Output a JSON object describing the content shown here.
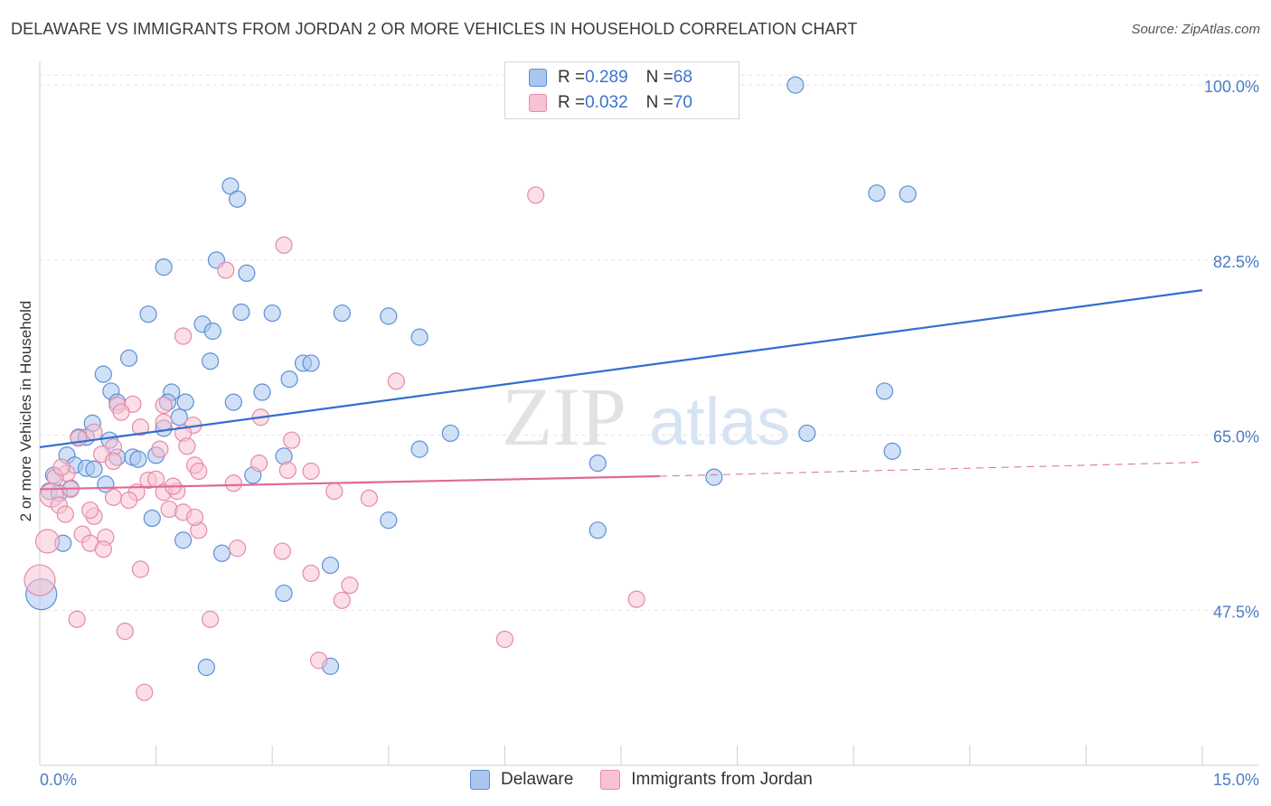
{
  "title": "DELAWARE VS IMMIGRANTS FROM JORDAN 2 OR MORE VEHICLES IN HOUSEHOLD CORRELATION CHART",
  "source": "Source: ZipAtlas.com",
  "watermark": {
    "zip": "ZIP",
    "atlas": "atlas"
  },
  "colors": {
    "blue_fill": "#a9c6ef",
    "blue_stroke": "#5d8fd6",
    "blue_line": "#2f6fcf",
    "pink_fill": "#f7c3d2",
    "pink_stroke": "#e58aa8",
    "pink_line": "#e06a93",
    "tick_text": "#4a7cc7",
    "grid": "#e4e4e4"
  },
  "legend": {
    "rows": [
      {
        "r_label": "R = ",
        "r_value": "0.289",
        "n_label": "N = ",
        "n_value": "68"
      },
      {
        "r_label": "R = ",
        "r_value": "0.032",
        "n_label": "N = ",
        "n_value": "70"
      }
    ]
  },
  "bottom_legend": {
    "series1": "Delaware",
    "series2": "Immigrants from Jordan"
  },
  "chart_data": {
    "type": "scatter",
    "title": "DELAWARE VS IMMIGRANTS FROM JORDAN 2 OR MORE VEHICLES IN HOUSEHOLD CORRELATION CHART",
    "xlabel": "",
    "ylabel": "2 or more Vehicles in Household",
    "xlim": [
      0,
      15
    ],
    "ylim": [
      32,
      102
    ],
    "x_tick_labels": [
      "0.0%",
      "15.0%"
    ],
    "y_ticks": [
      47.5,
      65.0,
      82.5,
      100.0
    ],
    "y_tick_labels": [
      "47.5%",
      "65.0%",
      "82.5%",
      "100.0%"
    ],
    "grid": true,
    "legend_position": "top-center",
    "series": [
      {
        "name": "Delaware",
        "trend": {
          "x0": 0,
          "y0": 63.8,
          "x1": 15,
          "y1": 79.5
        },
        "points": [
          [
            9.75,
            100.0
          ],
          [
            2.46,
            89.9
          ],
          [
            2.55,
            88.6
          ],
          [
            10.8,
            89.2
          ],
          [
            11.2,
            89.1
          ],
          [
            1.6,
            81.8
          ],
          [
            2.28,
            82.5
          ],
          [
            2.67,
            81.2
          ],
          [
            1.4,
            77.1
          ],
          [
            2.6,
            77.3
          ],
          [
            3.0,
            77.2
          ],
          [
            3.9,
            77.2
          ],
          [
            4.5,
            76.9
          ],
          [
            2.1,
            76.1
          ],
          [
            2.23,
            75.4
          ],
          [
            4.9,
            74.8
          ],
          [
            1.15,
            72.7
          ],
          [
            2.2,
            72.4
          ],
          [
            3.4,
            72.2
          ],
          [
            3.5,
            72.2
          ],
          [
            0.82,
            71.1
          ],
          [
            3.22,
            70.6
          ],
          [
            0.92,
            69.4
          ],
          [
            1.7,
            69.3
          ],
          [
            2.87,
            69.3
          ],
          [
            10.9,
            69.4
          ],
          [
            1.0,
            68.3
          ],
          [
            1.65,
            68.3
          ],
          [
            1.88,
            68.3
          ],
          [
            2.5,
            68.3
          ],
          [
            1.8,
            66.8
          ],
          [
            0.68,
            66.2
          ],
          [
            1.6,
            65.7
          ],
          [
            0.5,
            64.8
          ],
          [
            0.6,
            64.8
          ],
          [
            5.3,
            65.2
          ],
          [
            9.9,
            65.2
          ],
          [
            0.35,
            63.0
          ],
          [
            1.5,
            63.0
          ],
          [
            4.9,
            63.6
          ],
          [
            11.0,
            63.4
          ],
          [
            1.0,
            62.8
          ],
          [
            1.2,
            62.8
          ],
          [
            1.27,
            62.6
          ],
          [
            3.15,
            62.9
          ],
          [
            0.45,
            62.0
          ],
          [
            0.6,
            61.7
          ],
          [
            0.7,
            61.6
          ],
          [
            7.2,
            62.2
          ],
          [
            0.18,
            61.0
          ],
          [
            2.75,
            61.0
          ],
          [
            0.85,
            60.1
          ],
          [
            8.7,
            60.8
          ],
          [
            0.4,
            59.7
          ],
          [
            0.12,
            59.4
          ],
          [
            0.25,
            59.2
          ],
          [
            1.45,
            56.7
          ],
          [
            4.5,
            56.5
          ],
          [
            7.2,
            55.5
          ],
          [
            0.3,
            54.2
          ],
          [
            1.85,
            54.5
          ],
          [
            2.35,
            53.2
          ],
          [
            3.75,
            52.0
          ],
          [
            3.15,
            49.2
          ],
          [
            0.02,
            49.1
          ],
          [
            2.15,
            41.8
          ],
          [
            3.75,
            41.9
          ],
          [
            0.9,
            64.5
          ]
        ]
      },
      {
        "name": "Immigrants from Jordan",
        "trend": {
          "x0": 0,
          "y0": 59.6,
          "x1": 8.0,
          "y1": 60.9,
          "dash_x1": 15,
          "dash_y1": 62.3
        },
        "points": [
          [
            6.4,
            89.0
          ],
          [
            3.15,
            84.0
          ],
          [
            2.4,
            81.5
          ],
          [
            1.85,
            74.9
          ],
          [
            4.6,
            70.4
          ],
          [
            1.0,
            68.0
          ],
          [
            1.2,
            68.1
          ],
          [
            1.6,
            68.0
          ],
          [
            1.05,
            67.3
          ],
          [
            1.6,
            66.3
          ],
          [
            2.85,
            66.8
          ],
          [
            1.3,
            65.8
          ],
          [
            1.98,
            66.0
          ],
          [
            1.85,
            65.2
          ],
          [
            0.7,
            65.3
          ],
          [
            0.5,
            64.7
          ],
          [
            3.25,
            64.5
          ],
          [
            0.95,
            63.8
          ],
          [
            0.8,
            63.1
          ],
          [
            1.55,
            63.6
          ],
          [
            0.95,
            62.4
          ],
          [
            2.0,
            62.0
          ],
          [
            2.83,
            62.2
          ],
          [
            3.2,
            61.5
          ],
          [
            3.5,
            61.4
          ],
          [
            2.05,
            61.4
          ],
          [
            0.35,
            61.2
          ],
          [
            0.2,
            60.8
          ],
          [
            1.4,
            60.5
          ],
          [
            1.5,
            60.6
          ],
          [
            2.5,
            60.2
          ],
          [
            0.4,
            59.6
          ],
          [
            1.25,
            59.3
          ],
          [
            1.6,
            59.3
          ],
          [
            1.77,
            59.4
          ],
          [
            3.8,
            59.4
          ],
          [
            0.15,
            59.0
          ],
          [
            0.95,
            58.8
          ],
          [
            4.25,
            58.7
          ],
          [
            1.15,
            58.5
          ],
          [
            0.25,
            58.0
          ],
          [
            1.67,
            57.6
          ],
          [
            1.85,
            57.3
          ],
          [
            0.33,
            57.1
          ],
          [
            0.7,
            56.9
          ],
          [
            2.05,
            55.5
          ],
          [
            0.55,
            55.1
          ],
          [
            0.85,
            54.8
          ],
          [
            0.1,
            54.4
          ],
          [
            0.65,
            54.2
          ],
          [
            0.82,
            53.6
          ],
          [
            2.55,
            53.7
          ],
          [
            3.13,
            53.4
          ],
          [
            1.3,
            51.6
          ],
          [
            3.5,
            51.2
          ],
          [
            0.0,
            50.5
          ],
          [
            4.0,
            50.0
          ],
          [
            3.9,
            48.5
          ],
          [
            7.7,
            48.6
          ],
          [
            0.48,
            46.6
          ],
          [
            2.2,
            46.6
          ],
          [
            1.1,
            45.4
          ],
          [
            6.0,
            44.6
          ],
          [
            3.6,
            42.5
          ],
          [
            1.35,
            39.3
          ],
          [
            0.65,
            57.5
          ],
          [
            2.0,
            56.8
          ],
          [
            1.9,
            63.9
          ],
          [
            0.28,
            61.8
          ],
          [
            1.72,
            59.9
          ]
        ]
      }
    ]
  }
}
